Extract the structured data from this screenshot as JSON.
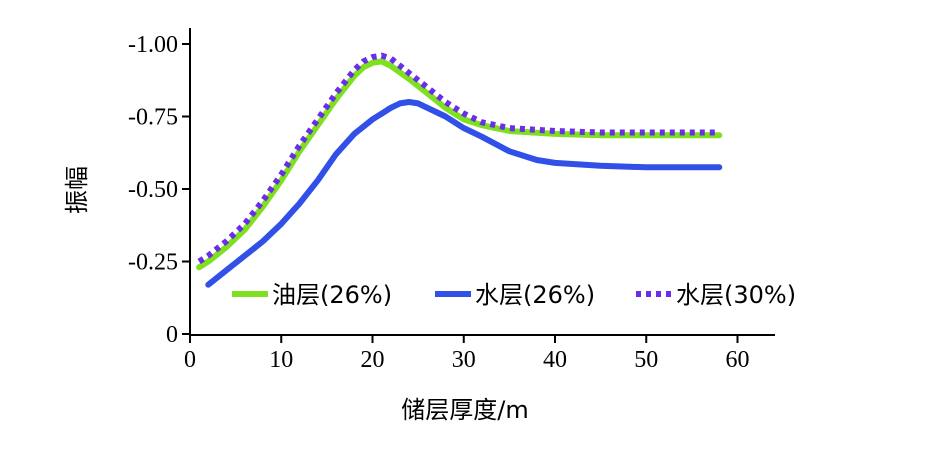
{
  "chart_data": {
    "type": "line",
    "title": "",
    "xlabel": "储层厚度/m",
    "ylabel": "振幅",
    "xlim": [
      0,
      63
    ],
    "ylim": [
      0,
      -1.0
    ],
    "xticks": [
      0,
      10,
      20,
      30,
      40,
      50,
      60
    ],
    "xtick_labels": [
      "0",
      "10",
      "20",
      "30",
      "40",
      "50",
      "60"
    ],
    "yticks": [
      0,
      -0.25,
      -0.5,
      -0.75,
      -1.0
    ],
    "ytick_labels": [
      "0",
      "-0.25",
      "-0.50",
      "-0.75",
      "-1.00"
    ],
    "grid": false,
    "legend_position": "bottom-center",
    "series": [
      {
        "name": "油层(26%)",
        "color": "#7fe01f",
        "style": "solid",
        "x": [
          1,
          2,
          4,
          6,
          8,
          10,
          12,
          14,
          16,
          18,
          19,
          20,
          21,
          22,
          24,
          26,
          28,
          30,
          32,
          35,
          40,
          45,
          50,
          55,
          58
        ],
        "values": [
          -0.23,
          -0.25,
          -0.3,
          -0.36,
          -0.44,
          -0.53,
          -0.63,
          -0.72,
          -0.81,
          -0.89,
          -0.92,
          -0.935,
          -0.94,
          -0.925,
          -0.88,
          -0.83,
          -0.78,
          -0.74,
          -0.72,
          -0.7,
          -0.69,
          -0.685,
          -0.685,
          -0.685,
          -0.685
        ]
      },
      {
        "name": "水层(26%)",
        "color": "#3050e8",
        "style": "solid",
        "x": [
          2,
          4,
          6,
          8,
          10,
          12,
          14,
          16,
          18,
          20,
          22,
          23,
          24,
          25,
          26,
          28,
          30,
          32,
          35,
          38,
          40,
          45,
          50,
          55,
          58
        ],
        "values": [
          -0.17,
          -0.22,
          -0.27,
          -0.32,
          -0.38,
          -0.45,
          -0.53,
          -0.62,
          -0.69,
          -0.74,
          -0.78,
          -0.795,
          -0.8,
          -0.795,
          -0.78,
          -0.75,
          -0.71,
          -0.68,
          -0.63,
          -0.6,
          -0.59,
          -0.58,
          -0.575,
          -0.575,
          -0.575
        ]
      },
      {
        "name": "水层(30%)",
        "color": "#6a2ee8",
        "style": "dotted",
        "x": [
          1,
          2,
          4,
          6,
          8,
          10,
          12,
          14,
          16,
          18,
          19,
          20,
          21,
          22,
          24,
          26,
          28,
          30,
          32,
          35,
          40,
          45,
          50,
          55,
          58
        ],
        "values": [
          -0.25,
          -0.27,
          -0.32,
          -0.38,
          -0.46,
          -0.55,
          -0.65,
          -0.74,
          -0.83,
          -0.91,
          -0.94,
          -0.955,
          -0.96,
          -0.95,
          -0.9,
          -0.85,
          -0.8,
          -0.76,
          -0.73,
          -0.71,
          -0.7,
          -0.695,
          -0.695,
          -0.695,
          -0.695
        ]
      }
    ]
  }
}
